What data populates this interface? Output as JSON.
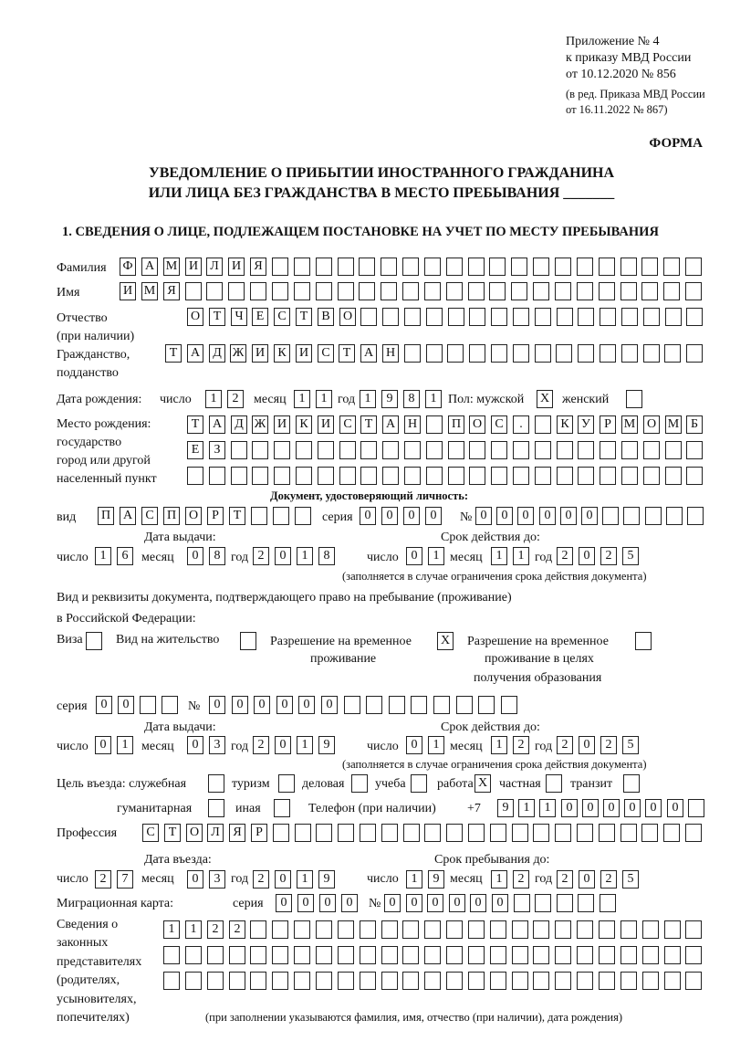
{
  "header": {
    "line1": "Приложение № 4",
    "line2": "к приказу МВД России",
    "line3": "от 10.12.2020 № 856",
    "line4": "(в ред. Приказа МВД России",
    "line5": "от 16.11.2022 № 867)",
    "forma": "ФОРМА",
    "title1": "УВЕДОМЛЕНИЕ О ПРИБЫТИИ ИНОСТРАННОГО ГРАЖДАНИНА",
    "title2": "ИЛИ ЛИЦА БЕЗ ГРАЖДАНСТВА В МЕСТО ПРЕБЫВАНИЯ _______",
    "section1": "1. СВЕДЕНИЯ О ЛИЦЕ, ПОДЛЕЖАЩЕМ ПОСТАНОВКЕ НА УЧЕТ ПО МЕСТУ ПРЕБЫВАНИЯ"
  },
  "labels": {
    "surname": "Фамилия",
    "name": "Имя",
    "patronymic1": "Отчество",
    "patronymic2": "(при наличии)",
    "citizenship1": "Гражданство,",
    "citizenship2": "подданство",
    "dob": "Дата рождения:",
    "day": "число",
    "month": "месяц",
    "year": "год",
    "sex": "Пол: мужской",
    "female": "женский",
    "pob1": "Место рождения:",
    "pob2": "государство",
    "pob3": "город или другой",
    "pob4": "населенный пункт",
    "id_doc": "Документ, удостоверяющий личность:",
    "kind": "вид",
    "series": "серия",
    "number": "№",
    "issue_date": "Дата выдачи:",
    "valid_until": "Срок действия до:",
    "validity_note": "(заполняется в случае ограничения срока действия документа)",
    "right_doc1": "Вид и реквизиты документа, подтверждающего право на пребывание (проживание)",
    "right_doc2": "в Российской Федерации:",
    "visa": "Виза",
    "residence_permit": "Вид на жительство",
    "temp_res1": "Разрешение на временное",
    "temp_res2": "проживание",
    "temp_edu1": "Разрешение на временное",
    "temp_edu2": "проживание в целях",
    "temp_edu3": "получения образования",
    "purpose": "Цель въезда: служебная",
    "tourism": "туризм",
    "business": "деловая",
    "study": "учеба",
    "work": "работа",
    "private": "частная",
    "transit": "транзит",
    "humanitarian": "гуманитарная",
    "other": "иная",
    "phone": "Телефон (при наличии)",
    "phone_prefix": "+7",
    "profession": "Профессия",
    "entry_date": "Дата въезда:",
    "stay_until": "Срок пребывания до:",
    "migration_card": "Миграционная карта:",
    "reps1": "Сведения о",
    "reps2": "законных",
    "reps3": "представителях",
    "reps4": "(родителях,",
    "reps5": "усыновителях,",
    "reps6": "попечителях)",
    "reps_note": "(при заполнении указываются фамилия, имя, отчество (при наличии), дата рождения)"
  },
  "fields": {
    "surname": [
      "Ф",
      "А",
      "М",
      "И",
      "Л",
      "И",
      "Я"
    ],
    "name": [
      "И",
      "М",
      "Я"
    ],
    "patronymic": [
      "О",
      "Т",
      "Ч",
      "Е",
      "С",
      "Т",
      "В",
      "О"
    ],
    "citizenship": [
      "Т",
      "А",
      "Д",
      "Ж",
      "И",
      "К",
      "И",
      "С",
      "Т",
      "А",
      "Н"
    ],
    "dob_day": [
      "1",
      "2"
    ],
    "dob_month": [
      "1",
      "1"
    ],
    "dob_year": [
      "1",
      "9",
      "8",
      "1"
    ],
    "sex_male": "X",
    "sex_female": "",
    "pob_row1": [
      "Т",
      "А",
      "Д",
      "Ж",
      "И",
      "К",
      "И",
      "С",
      "Т",
      "А",
      "Н",
      "",
      "П",
      "О",
      "С",
      ".",
      "",
      "К",
      "У",
      "Р",
      "М",
      "О",
      "М",
      "Б"
    ],
    "pob_row2": [
      "Е",
      "З"
    ],
    "pob_row3": [],
    "id_kind": [
      "П",
      "А",
      "С",
      "П",
      "О",
      "Р",
      "Т"
    ],
    "id_series": [
      "0",
      "0",
      "0",
      "0"
    ],
    "id_number": [
      "0",
      "0",
      "0",
      "0",
      "0",
      "0"
    ],
    "id_issue_day": [
      "1",
      "6"
    ],
    "id_issue_month": [
      "0",
      "8"
    ],
    "id_issue_year": [
      "2",
      "0",
      "1",
      "8"
    ],
    "id_valid_day": [
      "0",
      "1"
    ],
    "id_valid_month": [
      "1",
      "1"
    ],
    "id_valid_year": [
      "2",
      "0",
      "2",
      "5"
    ],
    "visa": "",
    "residence_permit": "",
    "temp_residence": "X",
    "temp_residence_edu": "",
    "rd_series": [
      "0",
      "0"
    ],
    "rd_number": [
      "0",
      "0",
      "0",
      "0",
      "0",
      "0"
    ],
    "rd_issue_day": [
      "0",
      "1"
    ],
    "rd_issue_month": [
      "0",
      "3"
    ],
    "rd_issue_year": [
      "2",
      "0",
      "1",
      "9"
    ],
    "rd_valid_day": [
      "0",
      "1"
    ],
    "rd_valid_month": [
      "1",
      "2"
    ],
    "rd_valid_year": [
      "2",
      "0",
      "2",
      "5"
    ],
    "p_service": "",
    "p_tourism": "",
    "p_business": "",
    "p_study": "",
    "p_work": "X",
    "p_private": "",
    "p_transit": "",
    "p_humanitarian": "",
    "p_other": "",
    "phone": [
      "9",
      "1",
      "1",
      "0",
      "0",
      "0",
      "0",
      "0",
      "0"
    ],
    "profession": [
      "С",
      "Т",
      "О",
      "Л",
      "Я",
      "Р"
    ],
    "entry_day": [
      "2",
      "7"
    ],
    "entry_month": [
      "0",
      "3"
    ],
    "entry_year": [
      "2",
      "0",
      "1",
      "9"
    ],
    "stay_day": [
      "1",
      "9"
    ],
    "stay_month": [
      "1",
      "2"
    ],
    "stay_year": [
      "2",
      "0",
      "2",
      "5"
    ],
    "mc_series": [
      "0",
      "0",
      "0",
      "0"
    ],
    "mc_number": [
      "0",
      "0",
      "0",
      "0",
      "0",
      "0"
    ],
    "reps_row1": [
      "1",
      "1",
      "2",
      "2"
    ],
    "reps_row2": [],
    "reps_row3": []
  }
}
